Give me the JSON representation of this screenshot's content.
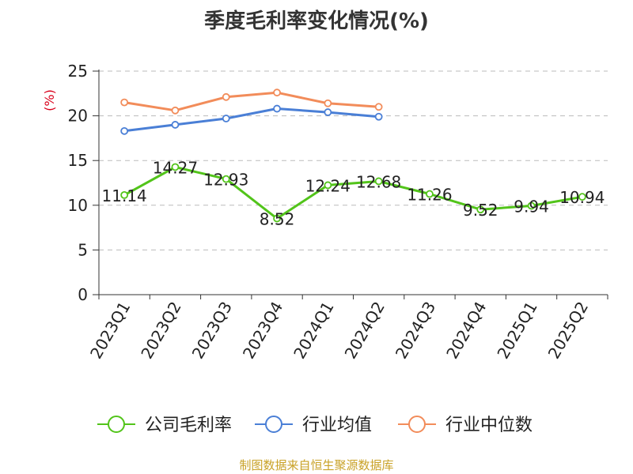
{
  "footer": {
    "source": "制图数据来自恒生聚源数据库"
  },
  "chart_data": {
    "type": "line",
    "title": "季度毛利率变化情况(%)",
    "ylabel": "(%)",
    "xlabel": "",
    "ylim": [
      0,
      25
    ],
    "yticks": [
      0,
      5,
      10,
      15,
      20,
      25
    ],
    "grid": true,
    "legend_position": "bottom",
    "categories": [
      "2023Q1",
      "2023Q2",
      "2023Q3",
      "2023Q4",
      "2024Q1",
      "2024Q2",
      "2024Q3",
      "2024Q4",
      "2025Q1",
      "2025Q2"
    ],
    "series": [
      {
        "name": "公司毛利率",
        "color": "#52c41a",
        "show_labels": true,
        "values": [
          11.14,
          14.27,
          12.93,
          8.52,
          12.24,
          12.68,
          11.26,
          9.52,
          9.94,
          10.94
        ]
      },
      {
        "name": "行业均值",
        "color": "#4a7fd6",
        "show_labels": false,
        "values": [
          18.3,
          19.0,
          19.7,
          20.8,
          20.4,
          19.9,
          null,
          null,
          null,
          null
        ]
      },
      {
        "name": "行业中位数",
        "color": "#f28c5a",
        "show_labels": false,
        "values": [
          21.5,
          20.6,
          22.1,
          22.6,
          21.4,
          21.0,
          null,
          null,
          null,
          null
        ]
      }
    ]
  }
}
